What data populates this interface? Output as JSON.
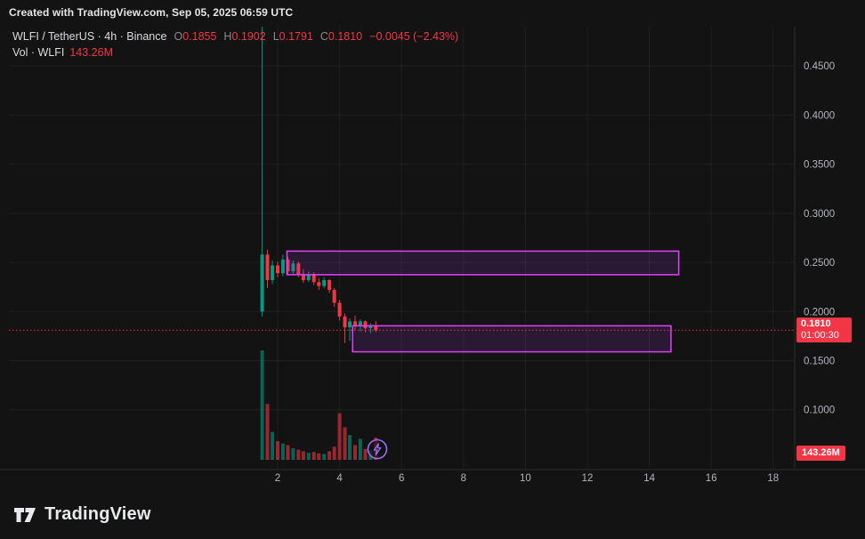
{
  "attribution": "Created with TradingView.com, Sep 05, 2025 06:59 UTC",
  "legend": {
    "title": "WLFI / TetherUS · 4h · Binance",
    "ohlc": [
      {
        "label": "O",
        "value": "0.1855"
      },
      {
        "label": "H",
        "value": "0.1902"
      },
      {
        "label": "L",
        "value": "0.1791"
      },
      {
        "label": "C",
        "value": "0.1810"
      }
    ],
    "change": "−0.0045 (−2.43%)",
    "vol_label": "Vol · WLFI",
    "vol_value": "143.26M"
  },
  "price_badge": {
    "price": "0.1810",
    "countdown": "01:00:30"
  },
  "volume_badge": "143.26M",
  "logo": {
    "text": "TradingView"
  },
  "icons": {
    "flash": "lightning-bolt"
  },
  "colors": {
    "background": "#131313",
    "up": "#089981",
    "down": "#f23645",
    "vol_up": "rgba(8,153,129,0.6)",
    "vol_down": "rgba(242,54,69,0.6)",
    "box_border": "#e040fb",
    "box_fill": "rgba(170,60,220,0.16)",
    "grid": "rgba(255,255,255,0.055)",
    "axis_text": "#b2b5be",
    "axis_border": "rgba(255,255,255,0.10)",
    "price_line": "#f23645",
    "flash": "#9b6cff"
  },
  "chart_data": {
    "type": "candlestick",
    "title": "WLFI / TetherUS · 4h · Binance",
    "legend_position": "top-left",
    "grid": true,
    "y_axis": {
      "side": "right",
      "ticks": [
        {
          "label": "0.4500",
          "value": 0.45
        },
        {
          "label": "0.4000",
          "value": 0.4
        },
        {
          "label": "0.3500",
          "value": 0.35
        },
        {
          "label": "0.3000",
          "value": 0.3
        },
        {
          "label": "0.2500",
          "value": 0.25
        },
        {
          "label": "0.2000",
          "value": 0.2
        },
        {
          "label": "0.1500",
          "value": 0.15
        },
        {
          "label": "0.1000",
          "value": 0.1
        }
      ]
    },
    "x_axis": {
      "ticks": [
        {
          "label": "2",
          "value": 2
        },
        {
          "label": "4",
          "value": 4
        },
        {
          "label": "6",
          "value": 6
        },
        {
          "label": "8",
          "value": 8
        },
        {
          "label": "10",
          "value": 10
        },
        {
          "label": "12",
          "value": 12
        },
        {
          "label": "14",
          "value": 14
        },
        {
          "label": "16",
          "value": 16
        },
        {
          "label": "18",
          "value": 18
        }
      ]
    },
    "price_line": 0.181,
    "candles": [
      {
        "t": 1.5,
        "o": 0.2,
        "h": 0.49,
        "l": 0.195,
        "c": 0.258,
        "v": 705
      },
      {
        "t": 1.67,
        "o": 0.258,
        "h": 0.263,
        "l": 0.224,
        "c": 0.232,
        "v": 360
      },
      {
        "t": 1.83,
        "o": 0.232,
        "h": 0.252,
        "l": 0.228,
        "c": 0.247,
        "v": 180
      },
      {
        "t": 2.0,
        "o": 0.247,
        "h": 0.251,
        "l": 0.235,
        "c": 0.239,
        "v": 120
      },
      {
        "t": 2.17,
        "o": 0.239,
        "h": 0.258,
        "l": 0.236,
        "c": 0.253,
        "v": 105
      },
      {
        "t": 2.33,
        "o": 0.253,
        "h": 0.256,
        "l": 0.238,
        "c": 0.241,
        "v": 95
      },
      {
        "t": 2.5,
        "o": 0.241,
        "h": 0.252,
        "l": 0.238,
        "c": 0.249,
        "v": 75
      },
      {
        "t": 2.67,
        "o": 0.249,
        "h": 0.251,
        "l": 0.235,
        "c": 0.238,
        "v": 65
      },
      {
        "t": 2.83,
        "o": 0.238,
        "h": 0.243,
        "l": 0.229,
        "c": 0.232,
        "v": 55
      },
      {
        "t": 3.0,
        "o": 0.232,
        "h": 0.241,
        "l": 0.23,
        "c": 0.238,
        "v": 45
      },
      {
        "t": 3.17,
        "o": 0.238,
        "h": 0.24,
        "l": 0.227,
        "c": 0.23,
        "v": 50
      },
      {
        "t": 3.33,
        "o": 0.23,
        "h": 0.234,
        "l": 0.222,
        "c": 0.226,
        "v": 42
      },
      {
        "t": 3.5,
        "o": 0.226,
        "h": 0.235,
        "l": 0.224,
        "c": 0.232,
        "v": 38
      },
      {
        "t": 3.67,
        "o": 0.232,
        "h": 0.233,
        "l": 0.219,
        "c": 0.222,
        "v": 55
      },
      {
        "t": 3.83,
        "o": 0.222,
        "h": 0.224,
        "l": 0.205,
        "c": 0.209,
        "v": 85
      },
      {
        "t": 4.0,
        "o": 0.209,
        "h": 0.212,
        "l": 0.191,
        "c": 0.195,
        "v": 300
      },
      {
        "t": 4.17,
        "o": 0.195,
        "h": 0.198,
        "l": 0.168,
        "c": 0.184,
        "v": 210
      },
      {
        "t": 4.33,
        "o": 0.184,
        "h": 0.193,
        "l": 0.17,
        "c": 0.19,
        "v": 160
      },
      {
        "t": 4.5,
        "o": 0.19,
        "h": 0.196,
        "l": 0.181,
        "c": 0.186,
        "v": 95
      },
      {
        "t": 4.67,
        "o": 0.186,
        "h": 0.192,
        "l": 0.18,
        "c": 0.19,
        "v": 135
      },
      {
        "t": 4.83,
        "o": 0.19,
        "h": 0.191,
        "l": 0.179,
        "c": 0.183,
        "v": 70
      },
      {
        "t": 5.0,
        "o": 0.183,
        "h": 0.188,
        "l": 0.178,
        "c": 0.1855,
        "v": 60
      },
      {
        "t": 5.17,
        "o": 0.1855,
        "h": 0.1902,
        "l": 0.1791,
        "c": 0.181,
        "v": 143.26
      }
    ],
    "boxes": [
      {
        "t1": 2.3,
        "t2": 14.95,
        "p_top": 0.2615,
        "p_bottom": 0.2375
      },
      {
        "t1": 4.42,
        "t2": 14.7,
        "p_top": 0.1855,
        "p_bottom": 0.159
      }
    ]
  }
}
